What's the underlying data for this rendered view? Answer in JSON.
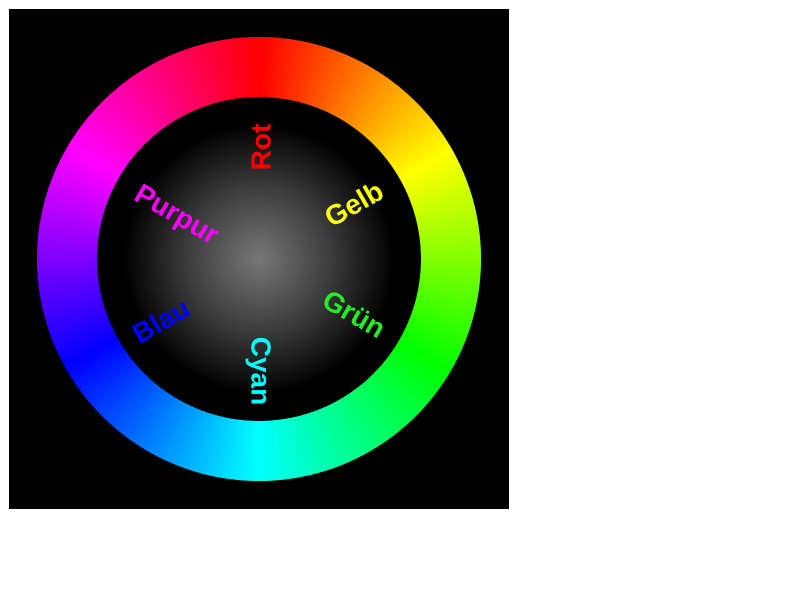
{
  "wheel": {
    "segments": [
      {
        "label": "Rot",
        "color": "#ff0000"
      },
      {
        "label": "Gelb",
        "color": "#ffff00"
      },
      {
        "label": "Grün",
        "color": "#00ff00"
      },
      {
        "label": "Cyan",
        "color": "#00ffff"
      },
      {
        "label": "Blau",
        "color": "#0000ff"
      },
      {
        "label": "Purpur",
        "color": "#ff00ff"
      }
    ],
    "background_color": "#000000",
    "center_glow_color": "#777777"
  }
}
